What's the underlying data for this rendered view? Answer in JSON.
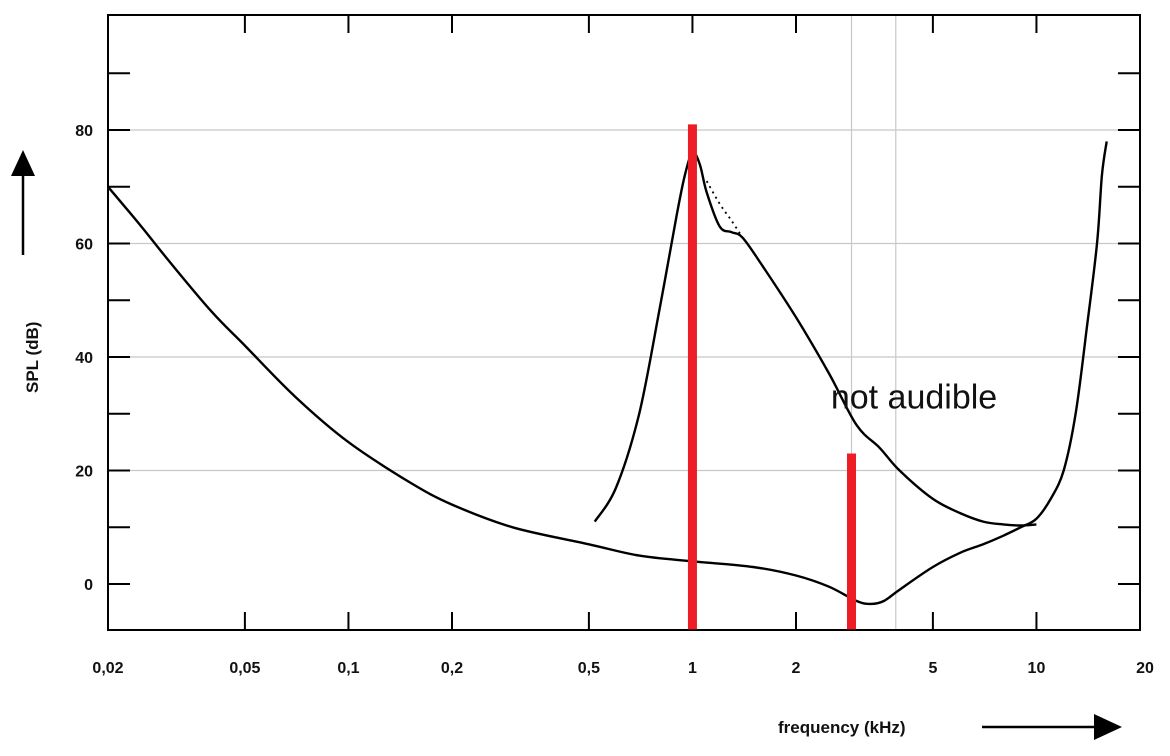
{
  "chart_data": {
    "type": "line",
    "title": "",
    "xlabel": "frequency (kHz)",
    "ylabel": "SPL (dB)",
    "xscale": "log",
    "xlim": [
      0.02,
      20
    ],
    "ylim": [
      -8,
      100
    ],
    "x_ticks": [
      {
        "value": 0.02,
        "label": "0,02"
      },
      {
        "value": 0.05,
        "label": "0,05"
      },
      {
        "value": 0.1,
        "label": "0,1"
      },
      {
        "value": 0.2,
        "label": "0,2"
      },
      {
        "value": 0.5,
        "label": "0,5"
      },
      {
        "value": 1,
        "label": "1"
      },
      {
        "value": 2,
        "label": "2"
      },
      {
        "value": 5,
        "label": "5"
      },
      {
        "value": 10,
        "label": "10"
      },
      {
        "value": 20,
        "label": "20"
      }
    ],
    "y_ticks": [
      {
        "value": 0,
        "label": "0"
      },
      {
        "value": 20,
        "label": "20"
      },
      {
        "value": 40,
        "label": "40"
      },
      {
        "value": 60,
        "label": "60"
      },
      {
        "value": 80,
        "label": "80"
      }
    ],
    "grid": {
      "horizontal": [
        20,
        40,
        60,
        80
      ],
      "vertical": [
        2.9,
        3.9
      ]
    },
    "series": [
      {
        "role": "threshold-in-quiet",
        "x": [
          0.02,
          0.025,
          0.03,
          0.04,
          0.05,
          0.07,
          0.1,
          0.15,
          0.2,
          0.3,
          0.5,
          0.7,
          1.0,
          1.5,
          2.0,
          2.5,
          3.0,
          3.3,
          3.6,
          4.0,
          5.0,
          6.0,
          7.0,
          8.0,
          9.0,
          10.0,
          11.0,
          12.0,
          13.0,
          14.0,
          15.0,
          15.5,
          16.0
        ],
        "y": [
          70,
          63,
          57,
          48,
          42,
          33,
          25,
          18,
          14,
          10,
          7,
          5,
          4,
          3,
          1.5,
          -0.5,
          -3,
          -3.5,
          -3,
          -1,
          3,
          5.5,
          7,
          8.5,
          10,
          11.5,
          15,
          20,
          30,
          45,
          60,
          72,
          78
        ]
      },
      {
        "role": "masking-threshold",
        "x": [
          0.52,
          0.6,
          0.7,
          0.8,
          0.9,
          0.95,
          1.0,
          1.05,
          1.1,
          1.2,
          1.3,
          1.4,
          1.6,
          2.0,
          2.5,
          3.0,
          3.5,
          4.0,
          5.0,
          6.0,
          7.0,
          8.0,
          9.0,
          10.0
        ],
        "y": [
          11,
          17,
          30,
          48,
          65,
          72,
          76,
          74,
          69,
          63,
          62,
          61,
          56,
          47,
          37,
          28,
          24,
          20,
          15,
          12.5,
          11,
          10.5,
          10.3,
          10.5
        ]
      },
      {
        "role": "masking-threshold-alternate",
        "x": [
          1.1,
          1.2,
          1.3,
          1.4
        ],
        "y": [
          71,
          67,
          64,
          61
        ]
      }
    ],
    "markers": [
      {
        "role": "masker",
        "x": 1.0,
        "y_from": -8,
        "y_to": 81,
        "color": "#ee1c24"
      },
      {
        "role": "masked-tone",
        "x": 2.9,
        "y_from": -8,
        "y_to": 23,
        "color": "#ee1c24"
      }
    ],
    "annotations": [
      {
        "text": "not audible",
        "x": 2.7,
        "y": 33
      }
    ]
  }
}
